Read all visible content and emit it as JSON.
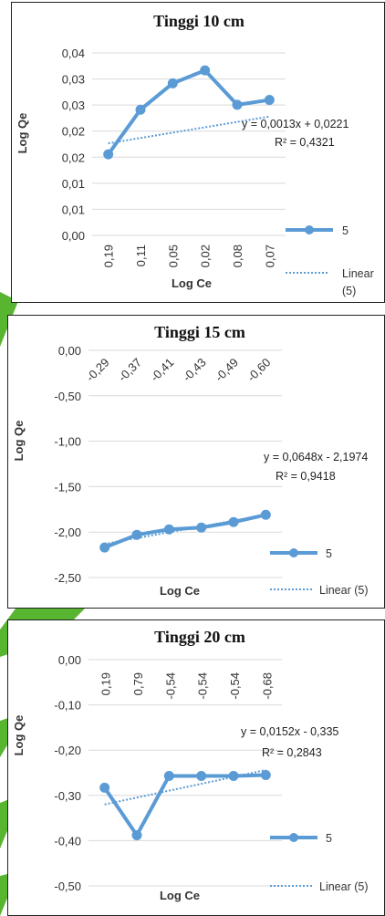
{
  "colors": {
    "series": "#5B9BD5",
    "trend": "#5B9BD5",
    "deco": "#58B52F",
    "grid": "#d9d9d9"
  },
  "chart_data": [
    {
      "type": "line",
      "title": "Tinggi 10 cm",
      "xlabel": "Log Ce",
      "ylabel": "Log Qe",
      "categories": [
        "0,19",
        "0,11",
        "0,05",
        "0,02",
        "0,08",
        "0,07"
      ],
      "series": [
        {
          "name": "5",
          "values": [
            0.02,
            0.031,
            0.0375,
            0.0407,
            0.0322,
            0.0334
          ]
        }
      ],
      "trendline": {
        "label": "Linear (5)",
        "start": 0.0227,
        "end": 0.0293
      },
      "equation": "y = 0,0013x + 0,0221",
      "r2": "R² = 0,4321",
      "y_tick_labels": [
        "0,04",
        "0,03",
        "0,03",
        "0,02",
        "0,02",
        "0,01",
        "0,01",
        "0,00"
      ],
      "ylim": [
        0,
        0.045
      ],
      "legend_position": "right"
    },
    {
      "type": "line",
      "title": "Tinggi 15 cm",
      "xlabel": "Log Ce",
      "ylabel": "Log Qe",
      "categories": [
        "-0,29",
        "-0,37",
        "-0,41",
        "-0,43",
        "-0,49",
        "-0,60"
      ],
      "series": [
        {
          "name": "5",
          "values": [
            -2.17,
            -2.03,
            -1.97,
            -1.95,
            -1.89,
            -1.81
          ]
        }
      ],
      "trendline": {
        "label": "Linear (5)",
        "start": -2.13,
        "end": -1.81
      },
      "equation": "y = 0,0648x - 2,1974",
      "r2": "R² = 0,9418",
      "y_tick_labels": [
        "0,00",
        "-0,50",
        "-1,00",
        "-1,50",
        "-2,00",
        "-2,50"
      ],
      "ylim": [
        -2.5,
        0
      ],
      "legend_position": "right"
    },
    {
      "type": "line",
      "title": "Tinggi 20 cm",
      "xlabel": "Log Ce",
      "ylabel": "Log Qe",
      "categories": [
        "0,19",
        "0,79",
        "-0,54",
        "-0,54",
        "-0,54",
        "-0,68"
      ],
      "series": [
        {
          "name": "5",
          "values": [
            -0.283,
            -0.388,
            -0.257,
            -0.257,
            -0.257,
            -0.255
          ]
        }
      ],
      "trendline": {
        "label": "Linear (5)",
        "start": -0.32,
        "end": -0.244
      },
      "equation": "y = 0,0152x - 0,335",
      "r2": "R² = 0,2843",
      "y_tick_labels": [
        "0,00",
        "-0,10",
        "-0,20",
        "-0,30",
        "-0,40",
        "-0,50"
      ],
      "ylim": [
        -0.5,
        0
      ],
      "legend_position": "right"
    }
  ]
}
